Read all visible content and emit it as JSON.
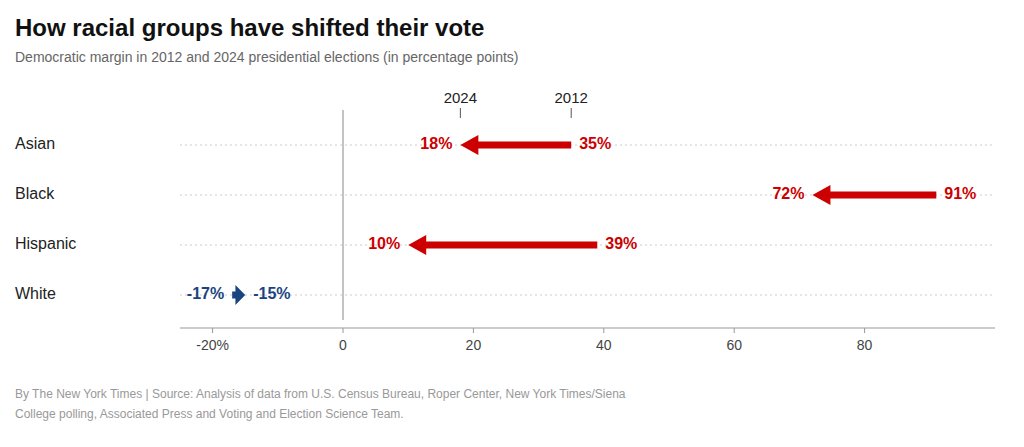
{
  "chart_data": {
    "type": "arrow",
    "title": "How racial groups have shifted their vote",
    "subtitle": "Democratic margin in 2012 and 2024 presidential elections (in percentage points)",
    "footnote": [
      "By The New York Times | Source: Analysis of data from U.S. Census Bureau, Roper Center, New York Times/Siena",
      "College polling, Associated Press and Voting and Election Science Team."
    ],
    "categories": [
      "Asian",
      "Black",
      "Hispanic",
      "White"
    ],
    "series": [
      {
        "name": "2012",
        "values": [
          35,
          91,
          39,
          -17
        ],
        "value_labels": [
          "35%",
          "91%",
          "39%",
          "-17%"
        ]
      },
      {
        "name": "2024",
        "values": [
          18,
          72,
          10,
          -15
        ],
        "value_labels": [
          "18%",
          "72%",
          "10%",
          "-15%"
        ]
      }
    ],
    "colors": [
      "#cc0000",
      "#cc0000",
      "#cc0000",
      "#1a4480"
    ],
    "xlim": [
      -25,
      100
    ],
    "xticks": [
      {
        "value": -20,
        "label": "-20%"
      },
      0,
      20,
      40,
      60,
      80
    ],
    "grid": false,
    "data_labels": true
  }
}
